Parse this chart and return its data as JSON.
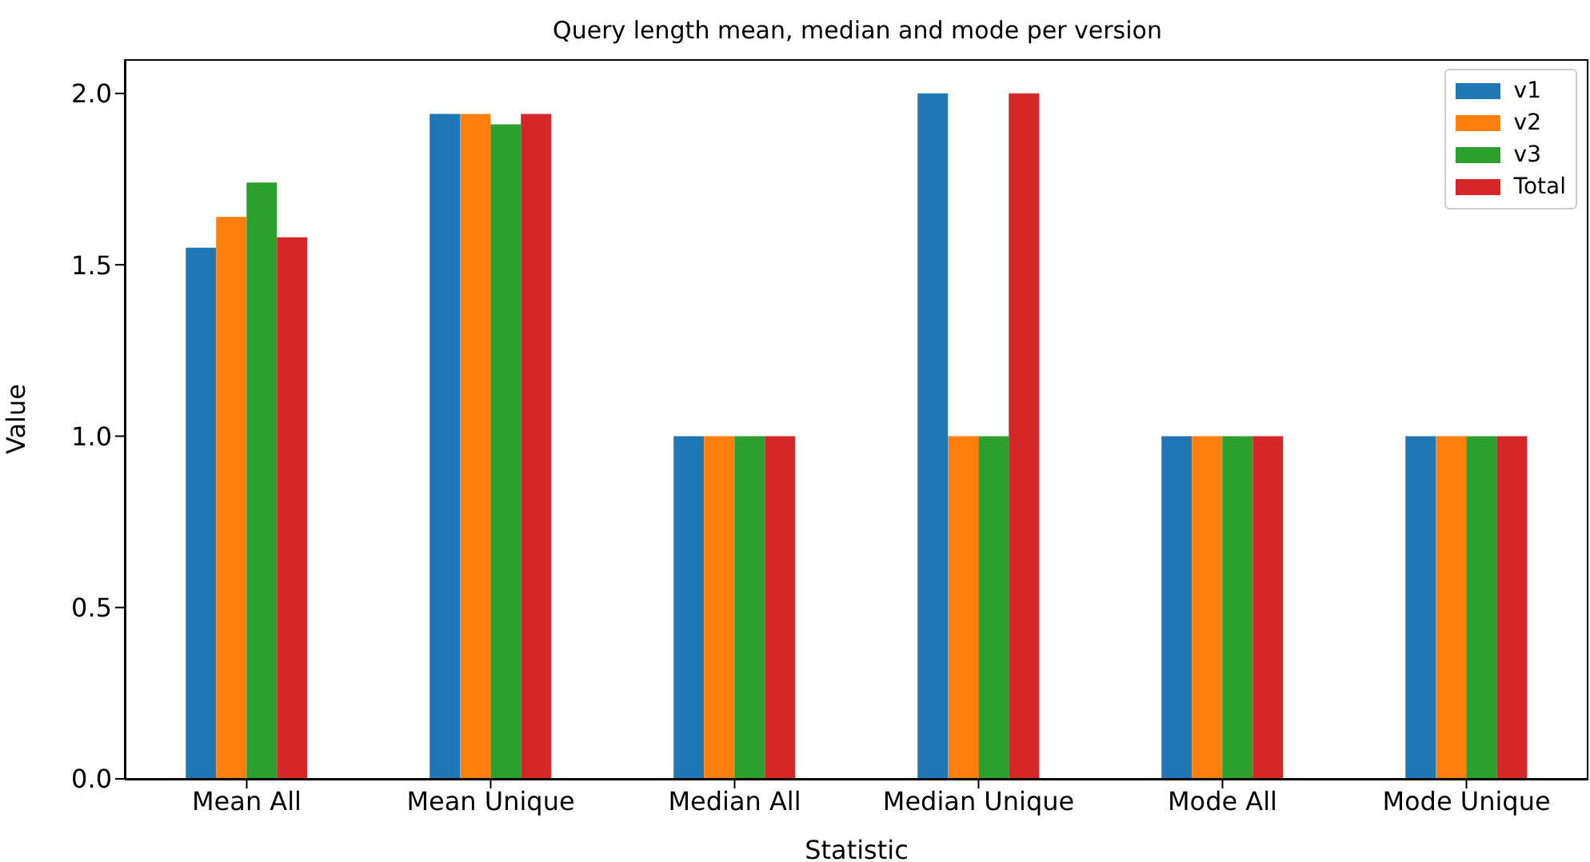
{
  "chart_data": {
    "type": "bar",
    "title": "Query length mean, median and mode per version",
    "xlabel": "Statistic",
    "ylabel": "Value",
    "categories": [
      "Mean All",
      "Mean Unique",
      "Median All",
      "Median Unique",
      "Mode All",
      "Mode Unique"
    ],
    "series": [
      {
        "name": "v1",
        "color": "#1f77b4",
        "values": [
          1.55,
          1.94,
          1,
          2,
          1,
          1
        ]
      },
      {
        "name": "v2",
        "color": "#ff7f0e",
        "values": [
          1.64,
          1.94,
          1,
          1,
          1,
          1
        ]
      },
      {
        "name": "v3",
        "color": "#2ca02c",
        "values": [
          1.74,
          1.91,
          1,
          1,
          1,
          1
        ]
      },
      {
        "name": "Total",
        "color": "#d62728",
        "values": [
          1.58,
          1.94,
          1,
          2,
          1,
          1
        ]
      }
    ],
    "ylim": [
      0,
      2.1
    ],
    "yticks": [
      {
        "value": 0,
        "label": "0.0"
      },
      0.5,
      {
        "value": 1,
        "label": "1.0"
      },
      1.5,
      {
        "value": 2,
        "label": "2.0"
      }
    ],
    "legend": "top right"
  }
}
